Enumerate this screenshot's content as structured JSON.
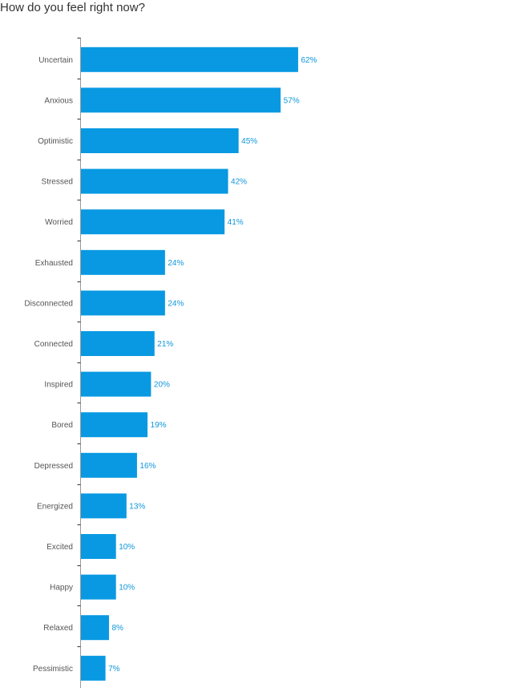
{
  "title": "How do you feel right now?",
  "colors": {
    "bar": "#0899e2",
    "value_label": "#0f96dc",
    "axis": "#9a9a9a",
    "category_label": "#555555"
  },
  "chart_data": {
    "type": "bar",
    "orientation": "horizontal",
    "title": "How do you feel right now?",
    "xlabel": "",
    "ylabel": "",
    "xlim": [
      0,
      100
    ],
    "value_suffix": "%",
    "categories": [
      "Uncertain",
      "Anxious",
      "Optimistic",
      "Stressed",
      "Worried",
      "Exhausted",
      "Disconnected",
      "Connected",
      "Inspired",
      "Bored",
      "Depressed",
      "Energized",
      "Excited",
      "Happy",
      "Relaxed",
      "Pessimistic"
    ],
    "values": [
      62,
      57,
      45,
      42,
      41,
      24,
      24,
      21,
      20,
      19,
      16,
      13,
      10,
      10,
      8,
      7
    ],
    "value_labels": [
      "62%",
      "57%",
      "45%",
      "42%",
      "41%",
      "24%",
      "24%",
      "21%",
      "20%",
      "19%",
      "16%",
      "13%",
      "10%",
      "10%",
      "8%",
      "7%"
    ]
  }
}
